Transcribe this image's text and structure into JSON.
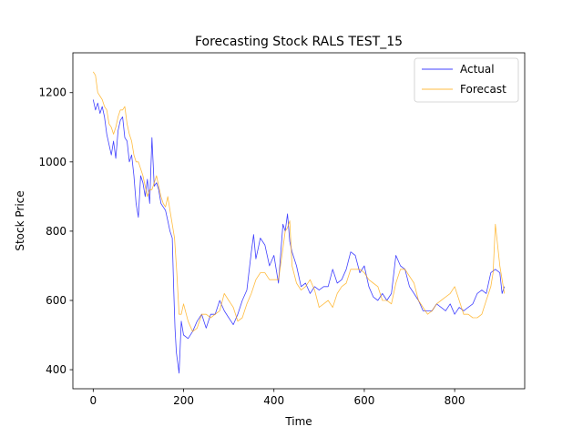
{
  "chart_data": {
    "type": "line",
    "title": "Forecasting Stock RALS TEST_15",
    "xlabel": "Time",
    "ylabel": "Stock Price",
    "xlim": [
      -45,
      955
    ],
    "ylim": [
      345,
      1315
    ],
    "xticks": [
      0,
      200,
      400,
      600,
      800
    ],
    "yticks": [
      400,
      600,
      800,
      1000,
      1200
    ],
    "grid": false,
    "legend_position": "top-right",
    "series": [
      {
        "name": "Actual",
        "color": "#0000ff",
        "x": [
          0,
          5,
          10,
          15,
          20,
          25,
          30,
          35,
          40,
          45,
          50,
          55,
          60,
          65,
          70,
          75,
          80,
          85,
          90,
          95,
          100,
          105,
          110,
          115,
          120,
          125,
          130,
          135,
          140,
          145,
          150,
          155,
          160,
          165,
          170,
          175,
          178,
          181,
          184,
          187,
          190,
          195,
          200,
          210,
          220,
          230,
          240,
          250,
          260,
          270,
          280,
          290,
          300,
          310,
          320,
          330,
          340,
          350,
          355,
          360,
          365,
          370,
          380,
          390,
          400,
          410,
          420,
          425,
          430,
          435,
          440,
          450,
          460,
          470,
          480,
          490,
          500,
          510,
          520,
          530,
          540,
          550,
          560,
          570,
          580,
          590,
          600,
          610,
          620,
          630,
          640,
          650,
          660,
          670,
          680,
          690,
          700,
          710,
          720,
          730,
          740,
          750,
          760,
          770,
          780,
          790,
          800,
          810,
          820,
          830,
          840,
          850,
          860,
          870,
          880,
          890,
          900,
          905,
          910
        ],
        "y": [
          1180,
          1150,
          1170,
          1140,
          1160,
          1130,
          1080,
          1050,
          1020,
          1060,
          1010,
          1090,
          1120,
          1130,
          1070,
          1060,
          1000,
          1020,
          960,
          880,
          840,
          960,
          940,
          900,
          950,
          880,
          1070,
          930,
          940,
          920,
          880,
          870,
          860,
          830,
          800,
          780,
          640,
          520,
          450,
          420,
          390,
          540,
          500,
          490,
          510,
          540,
          560,
          520,
          560,
          560,
          600,
          570,
          550,
          530,
          560,
          600,
          630,
          740,
          790,
          720,
          750,
          780,
          760,
          700,
          730,
          650,
          820,
          800,
          850,
          770,
          740,
          700,
          640,
          650,
          620,
          640,
          630,
          640,
          640,
          690,
          650,
          660,
          690,
          740,
          730,
          680,
          700,
          640,
          610,
          600,
          620,
          600,
          620,
          730,
          700,
          690,
          640,
          620,
          600,
          570,
          570,
          570,
          590,
          580,
          570,
          590,
          560,
          580,
          570,
          580,
          590,
          620,
          630,
          620,
          680,
          690,
          680,
          620,
          640
        ]
      },
      {
        "name": "Forecast",
        "color": "#ffa500",
        "x": [
          0,
          5,
          10,
          15,
          20,
          25,
          30,
          35,
          40,
          45,
          50,
          55,
          60,
          65,
          70,
          75,
          80,
          85,
          90,
          95,
          100,
          105,
          110,
          115,
          120,
          125,
          130,
          135,
          140,
          145,
          150,
          155,
          160,
          165,
          170,
          175,
          180,
          185,
          190,
          195,
          200,
          210,
          220,
          230,
          240,
          250,
          260,
          270,
          280,
          290,
          300,
          310,
          320,
          330,
          340,
          350,
          360,
          370,
          380,
          390,
          400,
          410,
          420,
          425,
          430,
          435,
          440,
          450,
          460,
          470,
          480,
          490,
          500,
          510,
          520,
          530,
          540,
          550,
          560,
          570,
          580,
          590,
          600,
          610,
          620,
          630,
          640,
          650,
          660,
          670,
          680,
          690,
          700,
          710,
          720,
          730,
          740,
          750,
          760,
          770,
          780,
          790,
          800,
          810,
          820,
          830,
          840,
          850,
          860,
          870,
          880,
          885,
          890,
          900,
          910
        ],
        "y": [
          1260,
          1250,
          1200,
          1190,
          1180,
          1160,
          1150,
          1110,
          1100,
          1080,
          1100,
          1130,
          1150,
          1150,
          1160,
          1110,
          1080,
          1060,
          1020,
          1000,
          1000,
          980,
          960,
          930,
          900,
          920,
          920,
          940,
          960,
          930,
          900,
          880,
          870,
          900,
          860,
          820,
          780,
          680,
          560,
          560,
          590,
          540,
          510,
          520,
          560,
          560,
          550,
          560,
          570,
          620,
          600,
          580,
          540,
          550,
          590,
          620,
          660,
          680,
          680,
          660,
          660,
          660,
          750,
          800,
          810,
          830,
          700,
          650,
          630,
          640,
          660,
          630,
          580,
          590,
          600,
          580,
          620,
          640,
          650,
          690,
          690,
          690,
          680,
          660,
          650,
          640,
          600,
          600,
          590,
          650,
          690,
          690,
          670,
          650,
          600,
          580,
          560,
          570,
          590,
          600,
          610,
          620,
          640,
          600,
          560,
          560,
          550,
          550,
          560,
          600,
          640,
          680,
          820,
          700,
          620
        ]
      }
    ]
  }
}
